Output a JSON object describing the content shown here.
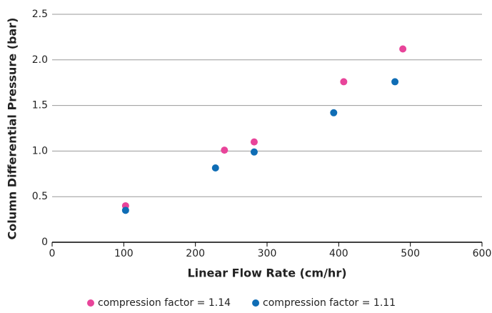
{
  "chart_data": {
    "type": "scatter",
    "x_label": "Linear Flow Rate (cm/hr)",
    "y_label": "Column Differential Pressure (bar)",
    "xlim": [
      0,
      600
    ],
    "xticks": [
      0,
      100,
      200,
      300,
      400,
      500,
      600
    ],
    "ylim": [
      0,
      2.5
    ],
    "yticks": [
      0,
      0.5,
      {
        "value": 1.0,
        "label": "1.0"
      },
      1.5,
      {
        "value": 2.0,
        "label": "2.0"
      },
      2.5
    ],
    "grid": true,
    "legend": "bottom",
    "series": [
      {
        "name": "compression factor = 1.14",
        "color": "#e8449a",
        "x": [
          102.5,
          240.5,
          282,
          407,
          489.5
        ],
        "values": [
          0.4,
          1.01,
          1.1,
          1.76,
          2.12
        ]
      },
      {
        "name": "compression factor = 1.11",
        "color": "#0f6db5",
        "x": [
          102.5,
          228,
          282,
          393,
          478.5
        ],
        "values": [
          0.35,
          0.815,
          0.99,
          1.42,
          1.76
        ]
      }
    ]
  }
}
